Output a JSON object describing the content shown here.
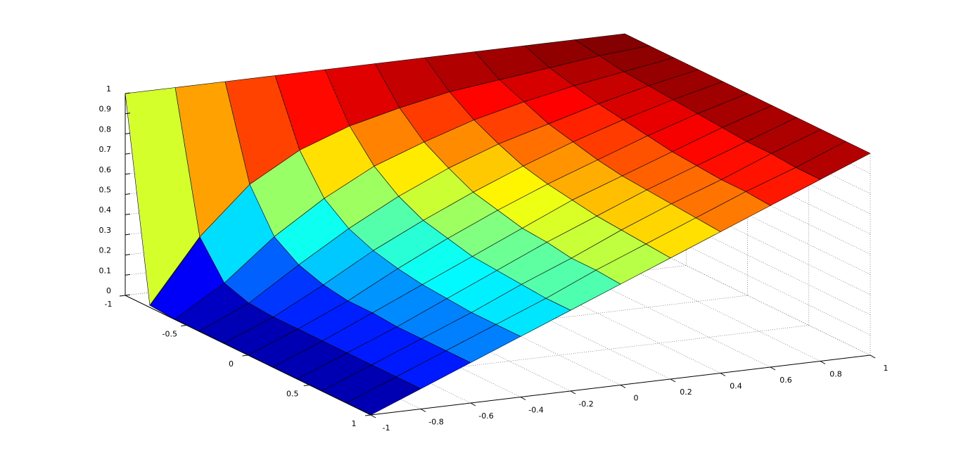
{
  "chart_data": {
    "type": "surface",
    "x": [
      -1,
      -0.8,
      -0.6,
      -0.4,
      -0.2,
      0,
      0.2,
      0.4,
      0.6,
      0.8,
      1
    ],
    "y": [
      -1,
      -0.8,
      -0.6,
      -0.4,
      -0.2,
      0,
      0.2,
      0.4,
      0.6,
      0.8,
      1
    ],
    "z": [
      [
        1,
        1,
        1,
        1,
        1,
        1,
        1,
        1,
        1,
        1,
        1
      ],
      [
        0.01,
        0.32,
        0.55,
        0.69,
        0.78,
        0.84,
        0.89,
        0.92,
        0.95,
        0.98,
        1
      ],
      [
        0,
        0.15,
        0.35,
        0.51,
        0.64,
        0.73,
        0.81,
        0.87,
        0.92,
        0.96,
        1
      ],
      [
        0,
        0.11,
        0.27,
        0.42,
        0.55,
        0.66,
        0.75,
        0.82,
        0.89,
        0.95,
        1
      ],
      [
        0,
        0.1,
        0.23,
        0.37,
        0.49,
        0.6,
        0.7,
        0.79,
        0.87,
        0.94,
        1
      ],
      [
        0,
        0.1,
        0.21,
        0.34,
        0.46,
        0.57,
        0.67,
        0.76,
        0.85,
        0.93,
        1
      ],
      [
        0,
        0.1,
        0.21,
        0.32,
        0.43,
        0.54,
        0.65,
        0.74,
        0.83,
        0.92,
        1
      ],
      [
        0,
        0.1,
        0.2,
        0.31,
        0.42,
        0.53,
        0.63,
        0.73,
        0.82,
        0.91,
        1
      ],
      [
        0,
        0.1,
        0.2,
        0.3,
        0.41,
        0.51,
        0.62,
        0.72,
        0.81,
        0.91,
        1
      ],
      [
        0,
        0.1,
        0.2,
        0.3,
        0.4,
        0.51,
        0.61,
        0.71,
        0.81,
        0.9,
        1
      ],
      [
        0,
        0.1,
        0.2,
        0.3,
        0.4,
        0.5,
        0.6,
        0.7,
        0.8,
        0.9,
        1
      ]
    ],
    "xlim": [
      -1,
      1
    ],
    "ylim": [
      -1,
      1
    ],
    "zlim": [
      0,
      1
    ],
    "xticks": [
      -1,
      -0.8,
      -0.6,
      -0.4,
      -0.2,
      0,
      0.2,
      0.4,
      0.6,
      0.8,
      1
    ],
    "yticks": [
      -1,
      -0.5,
      0,
      0.5,
      1
    ],
    "zticks": [
      0,
      0.1,
      0.2,
      0.3,
      0.4,
      0.5,
      0.6,
      0.7,
      0.8,
      0.9,
      1
    ],
    "colormap": "jet",
    "grid": true
  }
}
